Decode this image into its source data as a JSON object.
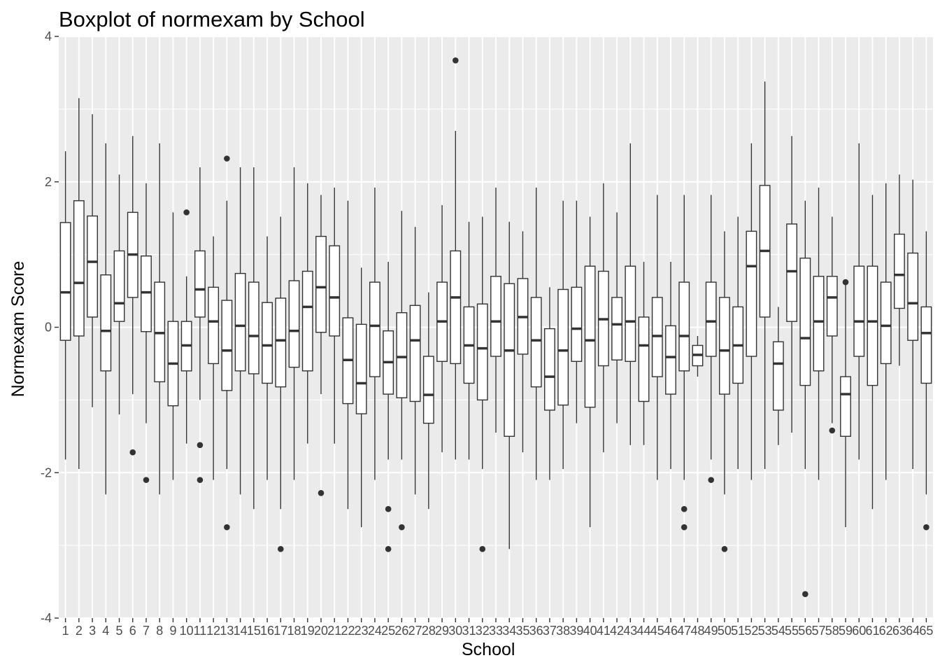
{
  "chart_data": {
    "type": "boxplot",
    "title": "Boxplot of normexam by School",
    "xlabel": "School",
    "ylabel": "Normexam Score",
    "ylim": [
      -4,
      4
    ],
    "yticks": [
      -4,
      -2,
      0,
      2,
      4
    ],
    "grid": true,
    "legend": "none",
    "colors": {
      "panel": "#ebebeb",
      "grid": "#ffffff",
      "box_fill": "#ffffff",
      "box_line": "#333333",
      "outlier": "#333333",
      "tick_text": "#4d4d4d"
    },
    "categories": [
      "1",
      "2",
      "3",
      "4",
      "5",
      "6",
      "7",
      "8",
      "9",
      "10",
      "11",
      "12",
      "13",
      "14",
      "15",
      "16",
      "17",
      "18",
      "19",
      "20",
      "21",
      "22",
      "23",
      "24",
      "25",
      "26",
      "27",
      "28",
      "29",
      "30",
      "31",
      "32",
      "33",
      "34",
      "35",
      "36",
      "37",
      "38",
      "39",
      "40",
      "41",
      "42",
      "43",
      "44",
      "45",
      "46",
      "47",
      "48",
      "49",
      "50",
      "51",
      "52",
      "53",
      "54",
      "55",
      "56",
      "57",
      "58",
      "59",
      "60",
      "61",
      "62",
      "63",
      "64",
      "65"
    ],
    "boxes": [
      {
        "min": -1.82,
        "q1": -0.18,
        "median": 0.48,
        "q3": 1.44,
        "max": 2.42,
        "outliers": []
      },
      {
        "min": -1.95,
        "q1": -0.12,
        "median": 0.61,
        "q3": 1.74,
        "max": 3.15,
        "outliers": []
      },
      {
        "min": -1.1,
        "q1": 0.14,
        "median": 0.9,
        "q3": 1.53,
        "max": 2.93,
        "outliers": []
      },
      {
        "min": -2.3,
        "q1": -0.6,
        "median": -0.05,
        "q3": 0.72,
        "max": 2.53,
        "outliers": []
      },
      {
        "min": -1.2,
        "q1": 0.08,
        "median": 0.33,
        "q3": 1.05,
        "max": 2.1,
        "outliers": []
      },
      {
        "min": -0.92,
        "q1": 0.41,
        "median": 1.0,
        "q3": 1.58,
        "max": 2.63,
        "outliers": [
          -1.72
        ]
      },
      {
        "min": -1.32,
        "q1": -0.06,
        "median": 0.48,
        "q3": 0.98,
        "max": 1.98,
        "outliers": [
          -2.1
        ]
      },
      {
        "min": -2.3,
        "q1": -0.75,
        "median": -0.08,
        "q3": 0.62,
        "max": 2.53,
        "outliers": []
      },
      {
        "min": -2.1,
        "q1": -1.08,
        "median": -0.5,
        "q3": 0.08,
        "max": 1.58,
        "outliers": []
      },
      {
        "min": -1.6,
        "q1": -0.6,
        "median": -0.25,
        "q3": 0.08,
        "max": 0.7,
        "outliers": [
          1.58
        ]
      },
      {
        "min": -1.0,
        "q1": 0.14,
        "median": 0.52,
        "q3": 1.05,
        "max": 2.2,
        "outliers": [
          -1.62,
          -2.1
        ]
      },
      {
        "min": -2.1,
        "q1": -0.5,
        "median": 0.08,
        "q3": 0.55,
        "max": 1.25,
        "outliers": []
      },
      {
        "min": -1.95,
        "q1": -0.87,
        "median": -0.32,
        "q3": 0.37,
        "max": 1.74,
        "outliers": [
          2.32,
          -2.75
        ]
      },
      {
        "min": -2.3,
        "q1": -0.6,
        "median": 0.02,
        "q3": 0.74,
        "max": 2.2,
        "outliers": []
      },
      {
        "min": -2.5,
        "q1": -0.64,
        "median": -0.12,
        "q3": 0.62,
        "max": 2.2,
        "outliers": []
      },
      {
        "min": -2.1,
        "q1": -0.77,
        "median": -0.25,
        "q3": 0.34,
        "max": 1.25,
        "outliers": []
      },
      {
        "min": -2.5,
        "q1": -0.82,
        "median": -0.18,
        "q3": 0.4,
        "max": 1.52,
        "outliers": [
          -3.05
        ]
      },
      {
        "min": -2.1,
        "q1": -0.55,
        "median": -0.05,
        "q3": 0.64,
        "max": 2.2,
        "outliers": []
      },
      {
        "min": -1.6,
        "q1": -0.6,
        "median": 0.28,
        "q3": 0.77,
        "max": 1.98,
        "outliers": []
      },
      {
        "min": -0.92,
        "q1": -0.07,
        "median": 0.55,
        "q3": 1.25,
        "max": 1.82,
        "outliers": [
          -2.28
        ]
      },
      {
        "min": -1.6,
        "q1": -0.12,
        "median": 0.41,
        "q3": 1.12,
        "max": 1.92,
        "outliers": []
      },
      {
        "min": -2.5,
        "q1": -1.05,
        "median": -0.45,
        "q3": 0.13,
        "max": 1.74,
        "outliers": []
      },
      {
        "min": -2.75,
        "q1": -1.19,
        "median": -0.77,
        "q3": 0.04,
        "max": 0.82,
        "outliers": []
      },
      {
        "min": -2.1,
        "q1": -0.68,
        "median": 0.02,
        "q3": 0.62,
        "max": 1.92,
        "outliers": []
      },
      {
        "min": -1.82,
        "q1": -0.92,
        "median": -0.48,
        "q3": -0.05,
        "max": 0.9,
        "outliers": [
          -2.5,
          -3.05
        ]
      },
      {
        "min": -1.82,
        "q1": -0.97,
        "median": -0.41,
        "q3": 0.2,
        "max": 1.6,
        "outliers": [
          -2.75
        ]
      },
      {
        "min": -2.3,
        "q1": -1.02,
        "median": -0.18,
        "q3": 0.3,
        "max": 1.38,
        "outliers": []
      },
      {
        "min": -2.5,
        "q1": -1.32,
        "median": -0.93,
        "q3": -0.4,
        "max": 0.48,
        "outliers": []
      },
      {
        "min": -1.72,
        "q1": -0.47,
        "median": 0.08,
        "q3": 0.62,
        "max": 1.68,
        "outliers": []
      },
      {
        "min": -1.82,
        "q1": -0.5,
        "median": 0.41,
        "q3": 1.05,
        "max": 2.7,
        "outliers": [
          3.67
        ]
      },
      {
        "min": -1.82,
        "q1": -0.77,
        "median": -0.25,
        "q3": 0.28,
        "max": 1.45,
        "outliers": []
      },
      {
        "min": -1.95,
        "q1": -1.0,
        "median": -0.29,
        "q3": 0.32,
        "max": 1.52,
        "outliers": [
          -3.05
        ]
      },
      {
        "min": -1.45,
        "q1": -0.4,
        "median": 0.08,
        "q3": 0.7,
        "max": 1.92,
        "outliers": []
      },
      {
        "min": -3.05,
        "q1": -1.5,
        "median": -0.32,
        "q3": 0.6,
        "max": 1.45,
        "outliers": []
      },
      {
        "min": -1.72,
        "q1": -0.37,
        "median": 0.14,
        "q3": 0.67,
        "max": 1.32,
        "outliers": []
      },
      {
        "min": -2.1,
        "q1": -0.82,
        "median": -0.18,
        "q3": 0.41,
        "max": 1.92,
        "outliers": []
      },
      {
        "min": -2.1,
        "q1": -1.14,
        "median": -0.68,
        "q3": -0.02,
        "max": 0.55,
        "outliers": []
      },
      {
        "min": -1.95,
        "q1": -1.07,
        "median": -0.32,
        "q3": 0.52,
        "max": 1.74,
        "outliers": []
      },
      {
        "min": -1.32,
        "q1": -0.47,
        "median": -0.02,
        "q3": 0.55,
        "max": 1.74,
        "outliers": []
      },
      {
        "min": -2.75,
        "q1": -1.1,
        "median": -0.18,
        "q3": 0.84,
        "max": 1.52,
        "outliers": []
      },
      {
        "min": -1.72,
        "q1": -0.53,
        "median": 0.11,
        "q3": 0.77,
        "max": 1.98,
        "outliers": []
      },
      {
        "min": -1.32,
        "q1": -0.45,
        "median": 0.04,
        "q3": 0.41,
        "max": 1.58,
        "outliers": []
      },
      {
        "min": -1.62,
        "q1": -0.47,
        "median": 0.08,
        "q3": 0.84,
        "max": 2.53,
        "outliers": []
      },
      {
        "min": -1.62,
        "q1": -1.02,
        "median": -0.25,
        "q3": 0.14,
        "max": 0.9,
        "outliers": []
      },
      {
        "min": -2.1,
        "q1": -0.68,
        "median": -0.12,
        "q3": 0.41,
        "max": 1.82,
        "outliers": []
      },
      {
        "min": -1.95,
        "q1": -0.92,
        "median": -0.41,
        "q3": 0.02,
        "max": 0.9,
        "outliers": []
      },
      {
        "min": -2.1,
        "q1": -0.6,
        "median": -0.12,
        "q3": 0.62,
        "max": 1.82,
        "outliers": [
          -2.5,
          -2.75
        ]
      },
      {
        "min": -0.68,
        "q1": -0.53,
        "median": -0.38,
        "q3": -0.25,
        "max": -0.12,
        "outliers": []
      },
      {
        "min": -1.82,
        "q1": -0.4,
        "median": 0.08,
        "q3": 0.62,
        "max": 1.82,
        "outliers": [
          -2.1
        ]
      },
      {
        "min": -2.3,
        "q1": -0.92,
        "median": -0.32,
        "q3": 0.41,
        "max": 1.32,
        "outliers": [
          -3.05
        ]
      },
      {
        "min": -1.95,
        "q1": -0.77,
        "median": -0.25,
        "q3": 0.28,
        "max": 1.52,
        "outliers": []
      },
      {
        "min": -2.1,
        "q1": -0.4,
        "median": 0.84,
        "q3": 1.32,
        "max": 2.53,
        "outliers": []
      },
      {
        "min": -1.95,
        "q1": 0.14,
        "median": 1.05,
        "q3": 1.95,
        "max": 3.38,
        "outliers": []
      },
      {
        "min": -1.62,
        "q1": -1.14,
        "median": -0.5,
        "q3": -0.2,
        "max": 0.28,
        "outliers": []
      },
      {
        "min": -1.45,
        "q1": 0.08,
        "median": 0.77,
        "q3": 1.42,
        "max": 2.63,
        "outliers": []
      },
      {
        "min": -1.95,
        "q1": -0.8,
        "median": -0.15,
        "q3": 0.95,
        "max": 1.74,
        "outliers": [
          -3.67
        ]
      },
      {
        "min": -2.1,
        "q1": -0.6,
        "median": 0.08,
        "q3": 0.7,
        "max": 1.92,
        "outliers": []
      },
      {
        "min": -1.32,
        "q1": -0.12,
        "median": 0.41,
        "q3": 0.7,
        "max": 1.52,
        "outliers": [
          -1.42
        ]
      },
      {
        "min": -2.75,
        "q1": -1.5,
        "median": -0.92,
        "q3": -0.68,
        "max": 0.62,
        "outliers": [
          0.62
        ]
      },
      {
        "min": -1.82,
        "q1": -0.4,
        "median": 0.08,
        "q3": 0.84,
        "max": 2.53,
        "outliers": []
      },
      {
        "min": -2.5,
        "q1": -0.8,
        "median": 0.08,
        "q3": 0.84,
        "max": 1.82,
        "outliers": []
      },
      {
        "min": -2.1,
        "q1": -0.5,
        "median": 0.02,
        "q3": 0.62,
        "max": 1.98,
        "outliers": []
      },
      {
        "min": -0.53,
        "q1": 0.26,
        "median": 0.72,
        "q3": 1.28,
        "max": 2.1,
        "outliers": []
      },
      {
        "min": -1.95,
        "q1": -0.18,
        "median": 0.33,
        "q3": 1.02,
        "max": 2.03,
        "outliers": []
      },
      {
        "min": -2.3,
        "q1": -0.77,
        "median": -0.08,
        "q3": 0.28,
        "max": 1.32,
        "outliers": [
          -2.75
        ]
      }
    ]
  }
}
